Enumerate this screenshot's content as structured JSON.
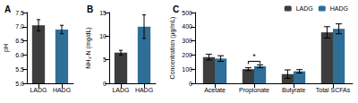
{
  "chart_data": [
    {
      "type": "bar",
      "title": "A",
      "y_label": "pH",
      "categories": [
        "LADG",
        "HADG"
      ],
      "values": [
        7.05,
        6.9
      ],
      "errors": [
        0.2,
        0.15
      ],
      "colors": [
        "#3d3d3d",
        "#2f6e96"
      ],
      "ylim": [
        5,
        7.5
      ],
      "yticks": [
        {
          "value": 5,
          "label": "5.0"
        },
        {
          "value": 5.5,
          "label": "5.5"
        },
        {
          "value": 6,
          "label": "6.0"
        },
        {
          "value": 6.5,
          "label": "6.5"
        },
        {
          "value": 7,
          "label": "7.0"
        },
        {
          "value": 7.5,
          "label": "7.5"
        }
      ],
      "grid": false
    },
    {
      "type": "bar",
      "title": "B",
      "y_label": "NH₃-N (mg/dL)",
      "categories": [
        "LADG",
        "HADG"
      ],
      "values": [
        6.5,
        12
      ],
      "errors": [
        0.5,
        2.5
      ],
      "colors": [
        "#3d3d3d",
        "#2f6e96"
      ],
      "ylim": [
        0,
        15
      ],
      "yticks": [
        0,
        5,
        10,
        15
      ],
      "grid": false
    },
    {
      "type": "bar",
      "title": "C",
      "y_label": "Concentration (μg/mL)",
      "categories": [
        "Acetate",
        "Propionate",
        "Butyrate",
        "Total SCFAs"
      ],
      "series": [
        {
          "name": "LADG",
          "color": "#3d3d3d",
          "values": [
            185,
            100,
            65,
            360
          ],
          "errors": [
            20,
            10,
            30,
            40
          ]
        },
        {
          "name": "HADG",
          "color": "#2f6e96",
          "values": [
            175,
            120,
            85,
            385
          ],
          "errors": [
            20,
            10,
            12,
            35
          ]
        }
      ],
      "annotations": [
        {
          "text": "*",
          "category": "Propionate"
        }
      ],
      "legend": "upper right",
      "ylim": [
        0,
        500
      ],
      "yticks": [
        0,
        100,
        200,
        300,
        400,
        500
      ],
      "grid": false
    }
  ]
}
